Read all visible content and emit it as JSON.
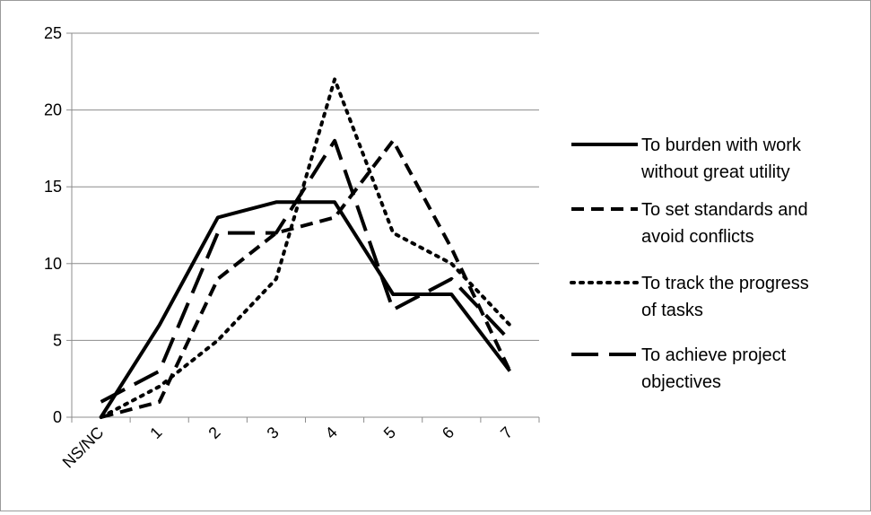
{
  "chart_data": {
    "type": "line",
    "title": "",
    "xlabel": "",
    "ylabel": "",
    "categories": [
      "NS/NC",
      "1",
      "2",
      "3",
      "4",
      "5",
      "6",
      "7"
    ],
    "ylim": [
      0,
      25
    ],
    "yticks": [
      0,
      5,
      10,
      15,
      20,
      25
    ],
    "grid": true,
    "legend_position": "right",
    "series": [
      {
        "name": "To burden with work without great utility",
        "values": [
          0,
          6,
          13,
          14,
          14,
          8,
          8,
          3
        ],
        "style": "solid",
        "color": "#000000"
      },
      {
        "name": "To set standards and avoid conflicts",
        "values": [
          0,
          1,
          9,
          12,
          13,
          18,
          11,
          3
        ],
        "style": "short-dash",
        "color": "#000000"
      },
      {
        "name": "To track the progress of tasks",
        "values": [
          0,
          2,
          5,
          9,
          22,
          12,
          10,
          6
        ],
        "style": "dotted",
        "color": "#000000"
      },
      {
        "name": "To achieve project objectives",
        "values": [
          1,
          3,
          12,
          12,
          18,
          7,
          9,
          5
        ],
        "style": "long-dash",
        "color": "#000000"
      }
    ]
  }
}
